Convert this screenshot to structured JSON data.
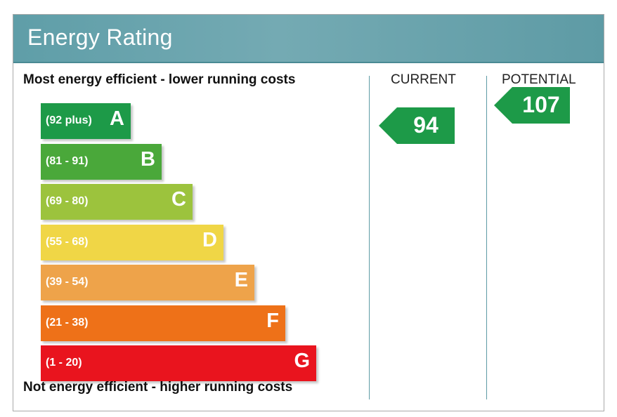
{
  "title": "Energy Rating",
  "captions": {
    "top": "Most energy efficient - lower running costs",
    "bottom": "Not energy efficient - higher running costs"
  },
  "columns": {
    "current": "CURRENT",
    "potential": "POTENTIAL"
  },
  "chart_data": {
    "type": "bar",
    "categories": [
      "A",
      "B",
      "C",
      "D",
      "E",
      "F",
      "G"
    ],
    "ranges": [
      "(92 plus)",
      "(81 - 91)",
      "(69 - 80)",
      "(55 - 68)",
      "(39 - 54)",
      "(21 - 38)",
      "(1 - 20)"
    ],
    "band_colors": [
      "#1d9a48",
      "#4aa83a",
      "#9cc33d",
      "#f0d646",
      "#eea34a",
      "#ee7118",
      "#e9141e"
    ],
    "ratings": [
      {
        "label": "CURRENT",
        "value": 94,
        "band": "A",
        "color": "#1d9a48"
      },
      {
        "label": "POTENTIAL",
        "value": 107,
        "band": "A",
        "color": "#1d9a48"
      }
    ]
  }
}
